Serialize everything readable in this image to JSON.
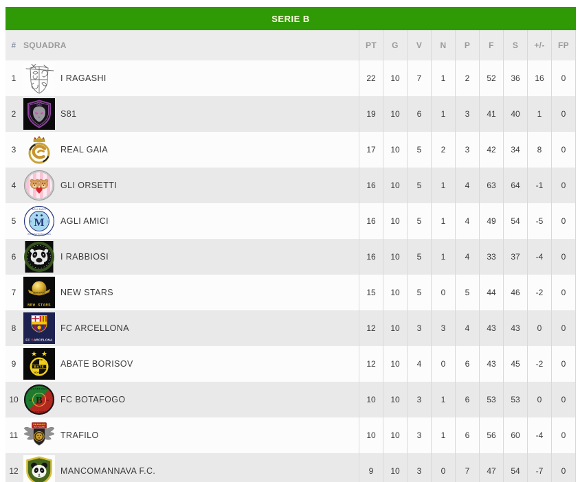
{
  "title": "SERIE B",
  "colors": {
    "banner_green": "#2f9a05",
    "banner_text": "#ffffe1",
    "header_bg": "#ececec",
    "header_text": "#9a9a9a",
    "row_odd": "#fcfcfc",
    "row_even": "#e9e9e9",
    "cell_text": "#3a3a3a"
  },
  "table": {
    "columns": [
      "#",
      "SQUADRA",
      "PT",
      "G",
      "V",
      "N",
      "P",
      "F",
      "S",
      "+/-",
      "FP"
    ],
    "stat_keys": [
      "pt",
      "g",
      "v",
      "n",
      "p",
      "f",
      "s",
      "plus-minus",
      "fp"
    ],
    "rows": [
      {
        "pos": 1,
        "team": "I RAGASHI",
        "logo": "i-ragashi",
        "stats": [
          22,
          10,
          7,
          1,
          2,
          52,
          36,
          16,
          0
        ]
      },
      {
        "pos": 2,
        "team": "S81",
        "logo": "s81",
        "stats": [
          19,
          10,
          6,
          1,
          3,
          41,
          40,
          1,
          0
        ]
      },
      {
        "pos": 3,
        "team": "REAL GAIA",
        "logo": "real-gaia",
        "stats": [
          17,
          10,
          5,
          2,
          3,
          42,
          34,
          8,
          0
        ]
      },
      {
        "pos": 4,
        "team": "GLI ORSETTI",
        "logo": "gli-orsetti",
        "stats": [
          16,
          10,
          5,
          1,
          4,
          63,
          64,
          -1,
          0
        ]
      },
      {
        "pos": 5,
        "team": "AGLI AMICI",
        "logo": "agli-amici",
        "stats": [
          16,
          10,
          5,
          1,
          4,
          49,
          54,
          -5,
          0
        ]
      },
      {
        "pos": 6,
        "team": "I RABBIOSI",
        "logo": "i-rabbiosi",
        "stats": [
          16,
          10,
          5,
          1,
          4,
          33,
          37,
          -4,
          0
        ]
      },
      {
        "pos": 7,
        "team": "NEW STARS",
        "logo": "new-stars",
        "stats": [
          15,
          10,
          5,
          0,
          5,
          44,
          46,
          -2,
          0
        ]
      },
      {
        "pos": 8,
        "team": "FC ARCELLONA",
        "logo": "fc-arcellona",
        "stats": [
          12,
          10,
          3,
          3,
          4,
          43,
          43,
          0,
          0
        ]
      },
      {
        "pos": 9,
        "team": "ABATE BORISOV",
        "logo": "abate-borisov",
        "stats": [
          12,
          10,
          4,
          0,
          6,
          43,
          45,
          -2,
          0
        ]
      },
      {
        "pos": 10,
        "team": "FC BOTAFOGO",
        "logo": "fc-botafogo",
        "stats": [
          10,
          10,
          3,
          1,
          6,
          53,
          53,
          0,
          0
        ]
      },
      {
        "pos": 11,
        "team": "TRAFILO",
        "logo": "trafilo",
        "stats": [
          10,
          10,
          3,
          1,
          6,
          56,
          60,
          -4,
          0
        ]
      },
      {
        "pos": 12,
        "team": "MANCOMANNAVA F.C.",
        "logo": "mancomannava-fc",
        "stats": [
          9,
          10,
          3,
          0,
          7,
          47,
          54,
          -7,
          0
        ]
      }
    ]
  }
}
